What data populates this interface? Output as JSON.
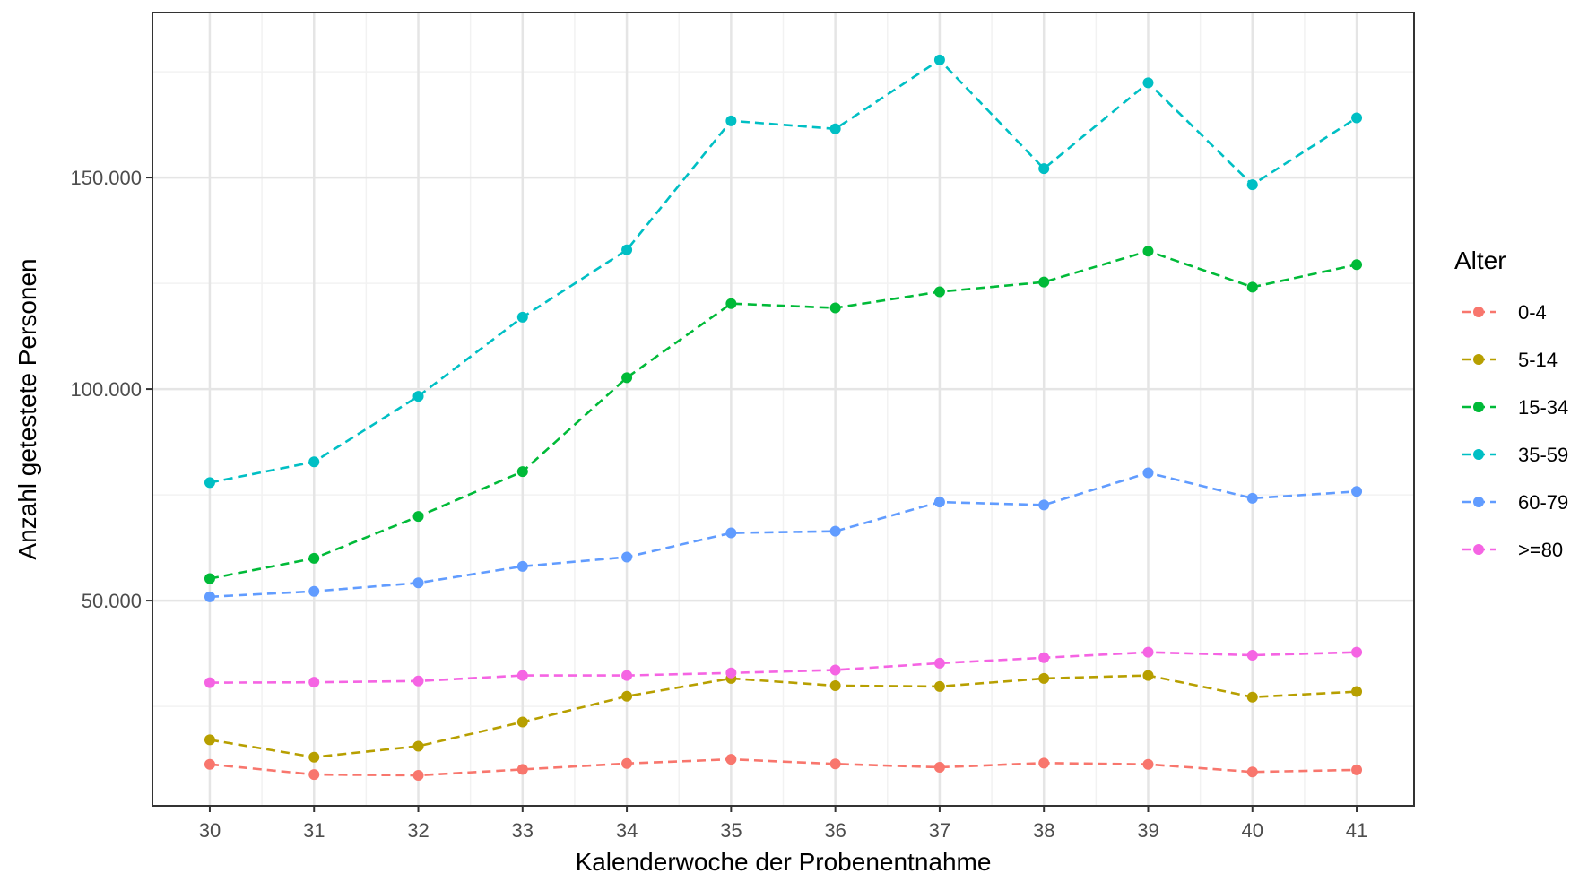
{
  "chart_data": {
    "type": "line",
    "xlabel": "Kalenderwoche der Probenentnahme",
    "ylabel": "Anzahl getestete Personen",
    "x": [
      30,
      31,
      32,
      33,
      34,
      35,
      36,
      37,
      38,
      39,
      40,
      41
    ],
    "x_tick_labels": [
      "30",
      "31",
      "32",
      "33",
      "34",
      "35",
      "36",
      "37",
      "38",
      "39",
      "40",
      "41"
    ],
    "y_ticks": [
      50000,
      100000,
      150000
    ],
    "y_tick_labels": [
      "50.000",
      "100.000",
      "150.000"
    ],
    "xlim": [
      29.45,
      41.55
    ],
    "ylim": [
      1500,
      189000
    ],
    "grid": true,
    "line_style": "dashed",
    "legend": {
      "title": "Alter",
      "placement": "right"
    },
    "series": [
      {
        "name": "0-4",
        "color": "#F8766D",
        "values": [
          11300,
          8900,
          8700,
          10100,
          11500,
          12500,
          11400,
          10600,
          11600,
          11300,
          9500,
          10000
        ]
      },
      {
        "name": "5-14",
        "color": "#B79F00",
        "values": [
          17100,
          13000,
          15600,
          21300,
          27400,
          31600,
          29900,
          29700,
          31600,
          32300,
          27200,
          28500
        ]
      },
      {
        "name": "15-34",
        "color": "#00BA38",
        "values": [
          55200,
          60000,
          69900,
          80500,
          102700,
          120200,
          119200,
          123000,
          125300,
          132600,
          124100,
          129400
        ]
      },
      {
        "name": "35-59",
        "color": "#00BFC4",
        "values": [
          77900,
          82800,
          98300,
          117000,
          132900,
          163400,
          161500,
          177800,
          152100,
          172400,
          148300,
          164100
        ]
      },
      {
        "name": "60-79",
        "color": "#619CFF",
        "values": [
          50900,
          52200,
          54200,
          58100,
          60300,
          66000,
          66400,
          73300,
          72600,
          80200,
          74200,
          75800
        ]
      },
      {
        "name": ">=80",
        "color": "#F564E3",
        "values": [
          30600,
          30700,
          31000,
          32300,
          32300,
          32900,
          33600,
          35200,
          36500,
          37800,
          37100,
          37800
        ]
      }
    ]
  }
}
